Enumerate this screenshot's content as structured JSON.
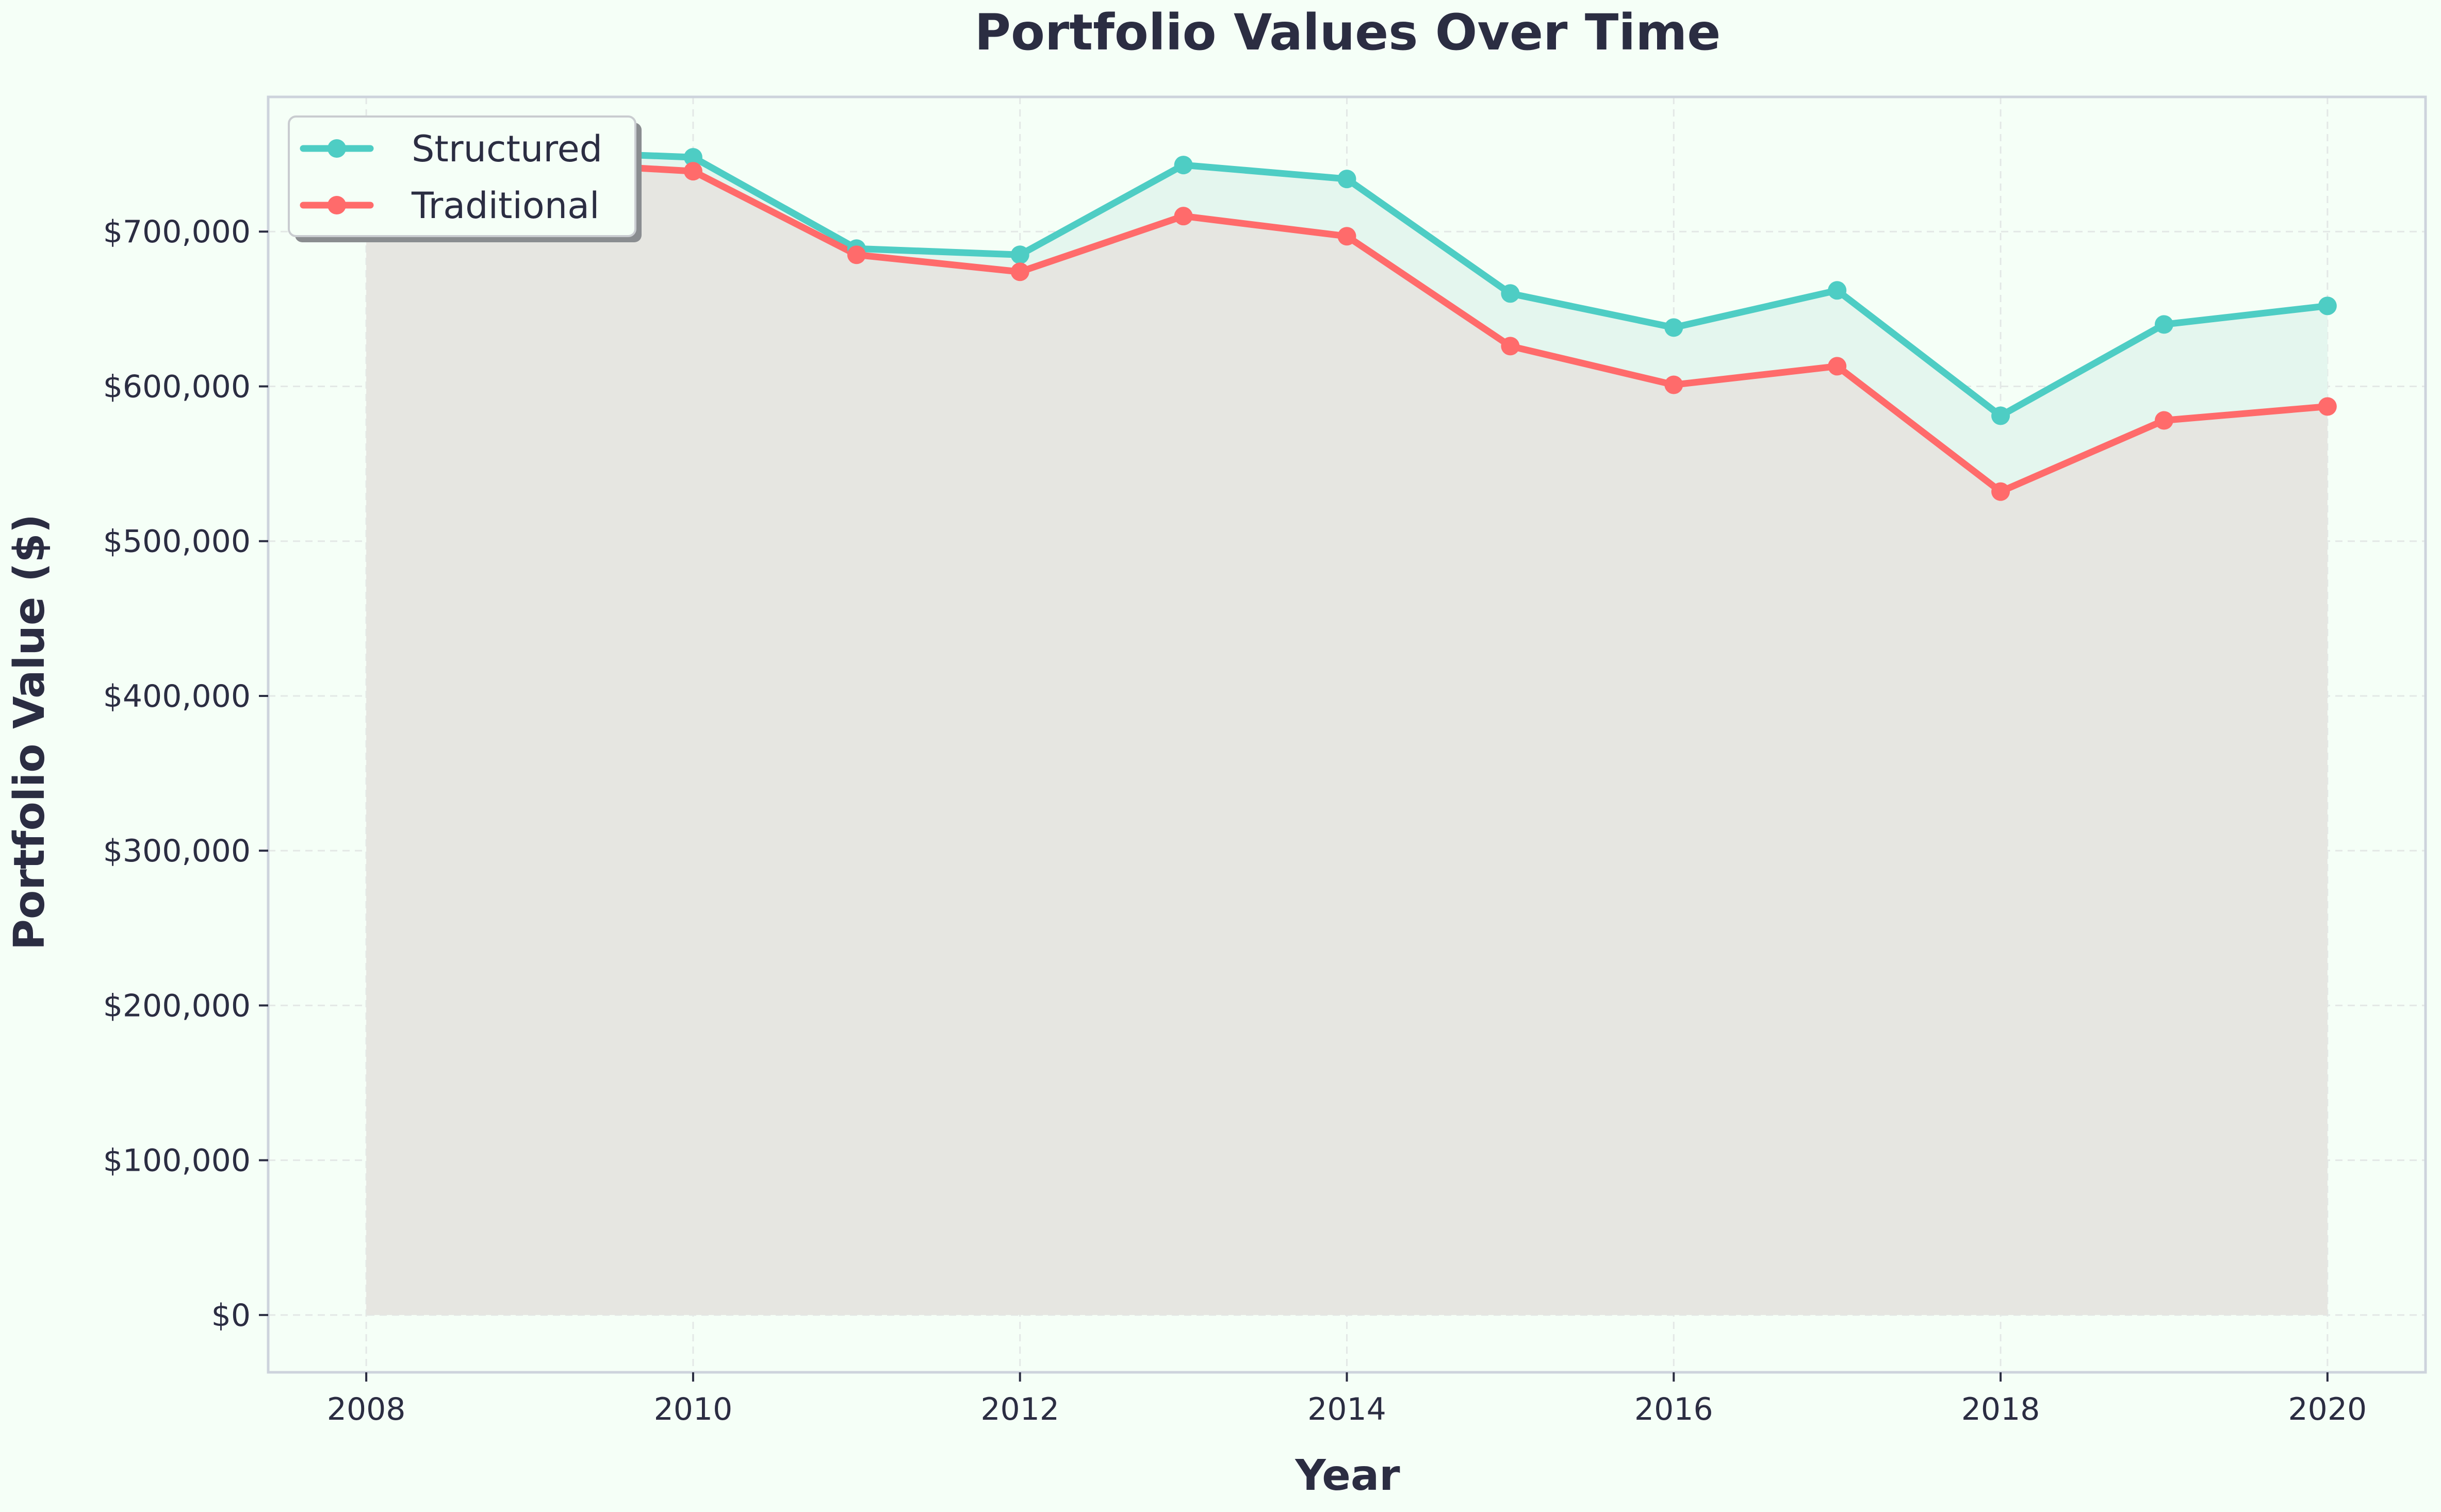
{
  "chart_data": {
    "type": "line",
    "title": "Portfolio Values Over Time",
    "xlabel": "Year",
    "ylabel": "Portfolio Value ($)",
    "x": [
      2008,
      2009,
      2010,
      2011,
      2012,
      2013,
      2014,
      2015,
      2016,
      2017,
      2018,
      2019,
      2020
    ],
    "x_ticks": [
      2008,
      2010,
      2012,
      2014,
      2016,
      2018,
      2020
    ],
    "x_tick_labels": [
      "2008",
      "2010",
      "2012",
      "2014",
      "2016",
      "2018",
      "2020"
    ],
    "y_ticks": [
      0,
      100000,
      200000,
      300000,
      400000,
      500000,
      600000,
      700000
    ],
    "y_tick_labels": [
      "$0",
      "$100,000",
      "$200,000",
      "$300,000",
      "$400,000",
      "$500,000",
      "$600,000",
      "$700,000"
    ],
    "xlim": [
      2007.4,
      2020.6
    ],
    "ylim": [
      -37000,
      787000
    ],
    "grid": true,
    "legend_position": "top-left",
    "series": [
      {
        "name": "Structured",
        "color": "#4ecdc4",
        "values": [
          705000,
          752000,
          748000,
          689000,
          685000,
          743000,
          734000,
          660000,
          638000,
          662000,
          581000,
          640000,
          652000
        ]
      },
      {
        "name": "Traditional",
        "color": "#ff6b6b",
        "values": [
          705000,
          745000,
          739000,
          685000,
          674000,
          710000,
          697000,
          626000,
          601000,
          613000,
          532000,
          578000,
          587000
        ]
      }
    ],
    "colors": {
      "background": "#f5fff7",
      "plot_background": "#f5fff7",
      "frame": "#cdd3dc",
      "grid": "#e3e8e6",
      "text": "#2b2d42",
      "fill_base": "#e6e6e1",
      "fill_structured": "#e4f6ee"
    }
  }
}
